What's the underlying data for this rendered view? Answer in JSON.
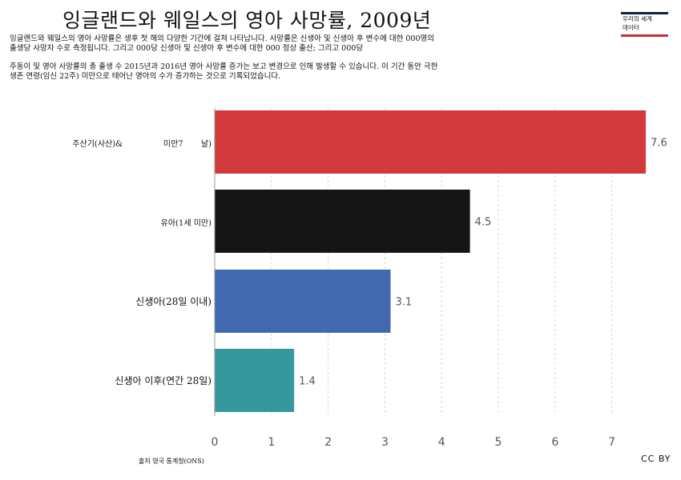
{
  "chart_data": {
    "type": "bar",
    "orientation": "horizontal",
    "title": "잉글랜드와 웨일스의 영아 사망률, 2009년",
    "subtitle_lines": [
      "잉글랜드와 웨일스의 영아 사망률은 생후 첫 해의 다양한 기간에 걸쳐 나타납니다. 사망률은 신생아 및 신생아 후 변수에 대한 000명의",
      "출생당 사망자 수로 측정됩니다. 그리고 000당                                    신생아 및 신생아 후 변수에 대한 000 정상 출산; 그리고 000당",
      "주동이 및 영아 사망률의 총 출생 수 2015년과 2016년 영아 사망률 증가는 보고 변경으로 인해 발생할 수 있습니다. 이 기간 동안 극한",
      "생존 연령(임신 22주) 미만으로 태어난 영아의 수가 증가하는 것으로 기록되었습니다."
    ],
    "categories": [
      "주산기(사산)&                미만7       날)",
      "유아(1세 미만)",
      "신생아(28일 이내)",
      "신생아 이후(연간 28일)"
    ],
    "values": [
      7.6,
      4.5,
      3.1,
      1.4
    ],
    "value_labels": [
      "7.6",
      "4.5",
      "3.1",
      "1.4"
    ],
    "colors": [
      "#d1393d",
      "#151515",
      "#4169b0",
      "#35989c"
    ],
    "x_ticks": [
      "0",
      "1",
      "2",
      "3",
      "4",
      "5",
      "6",
      "7"
    ],
    "xlim": [
      0,
      7.6
    ],
    "grid": "vertical dashed",
    "source": "출처 영국 통계청(ONS)",
    "license": "CC BY"
  },
  "logo": {
    "line1": "우리의 세계",
    "line2": "데이터"
  }
}
